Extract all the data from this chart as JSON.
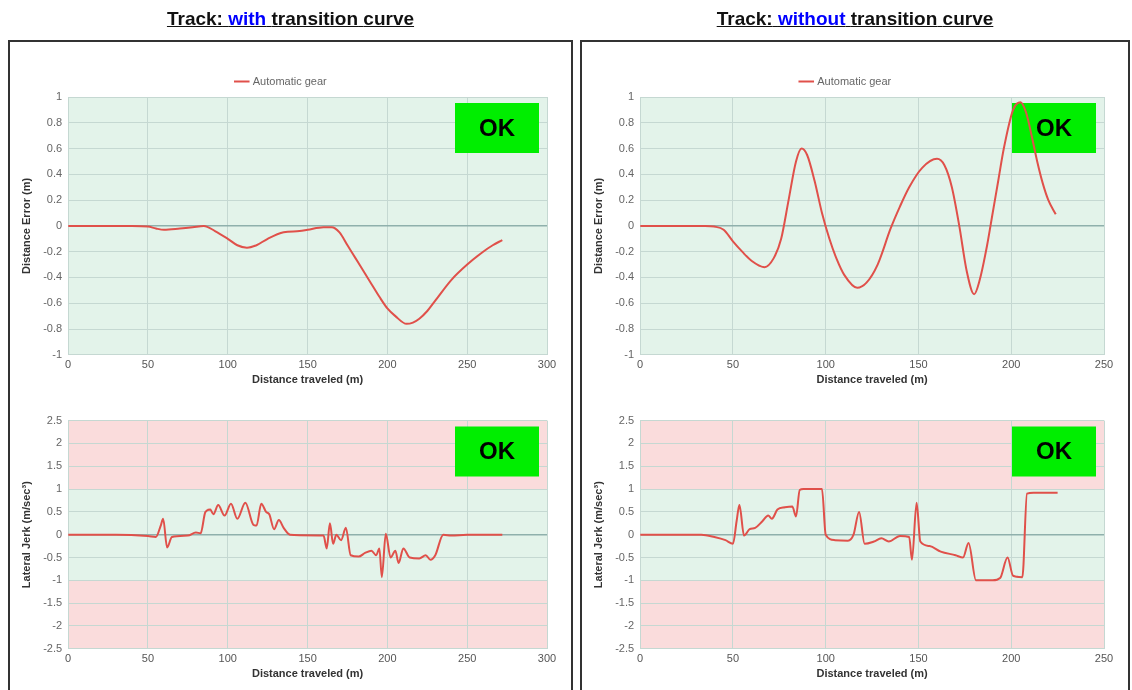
{
  "chart_data": [
    {
      "type": "line",
      "title": "Track: with transition curve",
      "xlabel": "Distance traveled (m)",
      "ylabel": "Distance Error (m)",
      "legend": "top",
      "grid": true,
      "xlim": [
        0,
        300
      ],
      "xticks": [
        0,
        50,
        100,
        150,
        200,
        250,
        300
      ],
      "ylim": [
        -1,
        1
      ],
      "yticks": [
        -1,
        -0.8,
        -0.6,
        -0.4,
        -0.2,
        0,
        0.2,
        0.4,
        0.6,
        0.8,
        1
      ],
      "bands": [
        {
          "axis": "y",
          "from": -1,
          "to": 1,
          "color": "#e3f3ea"
        }
      ],
      "annotations": [
        "OK"
      ],
      "x": [
        0,
        20,
        40,
        50,
        55,
        60,
        70,
        78,
        85,
        92,
        100,
        106,
        112,
        118,
        125,
        135,
        145,
        150,
        160,
        165,
        170,
        175,
        180,
        185,
        190,
        195,
        200,
        205,
        212,
        216,
        220,
        225,
        230,
        240,
        250,
        260,
        266,
        272
      ],
      "series": [
        {
          "name": "Automatic gear",
          "color": "#e0504a",
          "values": [
            0,
            0,
            0,
            -0.005,
            -0.02,
            -0.03,
            -0.02,
            -0.01,
            0,
            -0.04,
            -0.1,
            -0.15,
            -0.17,
            -0.15,
            -0.1,
            -0.05,
            -0.04,
            -0.03,
            -0.01,
            -0.01,
            -0.05,
            -0.15,
            -0.25,
            -0.35,
            -0.45,
            -0.55,
            -0.64,
            -0.7,
            -0.76,
            -0.75,
            -0.72,
            -0.66,
            -0.58,
            -0.42,
            -0.3,
            -0.2,
            -0.15,
            -0.11
          ]
        }
      ]
    },
    {
      "type": "line",
      "title": "Track: without transition curve",
      "xlabel": "Distance traveled (m)",
      "ylabel": "Distance Error (m)",
      "legend": "top",
      "grid": true,
      "xlim": [
        0,
        250
      ],
      "xticks": [
        0,
        50,
        100,
        150,
        200,
        250
      ],
      "ylim": [
        -1,
        1
      ],
      "yticks": [
        -1,
        -0.8,
        -0.6,
        -0.4,
        -0.2,
        0,
        0.2,
        0.4,
        0.6,
        0.8,
        1
      ],
      "bands": [
        {
          "axis": "y",
          "from": -1,
          "to": 1,
          "color": "#e3f3ea"
        }
      ],
      "annotations": [
        "OK"
      ],
      "x": [
        0,
        20,
        35,
        40,
        45,
        50,
        55,
        60,
        67,
        72,
        76,
        80,
        84,
        87,
        90,
        94,
        98,
        102,
        106,
        110,
        117,
        122,
        128,
        135,
        140,
        145,
        152,
        160,
        164,
        168,
        172,
        176,
        180,
        183,
        187,
        190,
        193,
        196,
        201,
        205,
        208,
        211,
        214,
        217,
        220,
        224
      ],
      "series": [
        {
          "name": "Automatic gear",
          "color": "#e0504a",
          "values": [
            0,
            0,
            0,
            -0.005,
            -0.03,
            -0.12,
            -0.2,
            -0.27,
            -0.32,
            -0.25,
            -0.1,
            0.2,
            0.5,
            0.6,
            0.55,
            0.35,
            0.1,
            -0.1,
            -0.26,
            -0.38,
            -0.48,
            -0.44,
            -0.3,
            -0.02,
            0.15,
            0.3,
            0.45,
            0.52,
            0.47,
            0.3,
            0,
            -0.35,
            -0.53,
            -0.42,
            -0.15,
            0.1,
            0.35,
            0.6,
            0.9,
            0.96,
            0.88,
            0.7,
            0.5,
            0.33,
            0.2,
            0.09
          ]
        }
      ]
    },
    {
      "type": "line",
      "xlabel": "Distance traveled (m)",
      "ylabel": "Lateral Jerk (m/sec³)",
      "legend": false,
      "grid": true,
      "xlim": [
        0,
        300
      ],
      "xticks": [
        0,
        50,
        100,
        150,
        200,
        250,
        300
      ],
      "ylim": [
        -2.5,
        2.5
      ],
      "yticks": [
        -2.5,
        -2,
        -1.5,
        -1,
        -0.5,
        0,
        0.5,
        1,
        1.5,
        2,
        2.5
      ],
      "bands": [
        {
          "axis": "y",
          "from": 1,
          "to": 2.5,
          "color": "#fadcdc"
        },
        {
          "axis": "y",
          "from": -1,
          "to": 1,
          "color": "#e3f3ea"
        },
        {
          "axis": "y",
          "from": -2.5,
          "to": -1,
          "color": "#fadcdc"
        }
      ],
      "annotations": [
        "OK"
      ],
      "x": [
        0,
        30,
        50,
        55,
        58,
        59.5,
        62,
        65,
        75,
        80,
        83,
        86,
        89,
        91,
        94,
        98,
        102,
        106,
        111,
        116,
        118,
        121,
        124,
        126,
        129,
        132,
        135,
        139,
        145,
        160,
        162,
        164,
        166,
        168,
        171,
        174,
        177,
        182,
        186,
        190,
        193,
        195,
        196.5,
        199,
        202,
        205,
        207,
        210,
        214,
        220,
        224,
        227,
        230,
        235,
        240,
        250,
        260,
        272
      ],
      "series": [
        {
          "color": "#e0504a",
          "values": [
            0,
            0,
            -0.03,
            -0.05,
            0.2,
            0.35,
            -0.28,
            -0.05,
            -0.02,
            0.05,
            0.03,
            0.5,
            0.55,
            0.45,
            0.65,
            0.42,
            0.68,
            0.35,
            0.7,
            0.22,
            0.2,
            0.68,
            0.5,
            0.45,
            0.12,
            0.32,
            0.15,
            0,
            -0.01,
            -0.02,
            -0.3,
            0.25,
            -0.2,
            0,
            -0.12,
            0.15,
            -0.45,
            -0.48,
            -0.4,
            -0.35,
            -0.45,
            -0.3,
            -0.93,
            0.02,
            -0.5,
            -0.35,
            -0.62,
            -0.3,
            -0.5,
            -0.52,
            -0.45,
            -0.55,
            -0.45,
            0,
            -0.02,
            0,
            0,
            0
          ]
        }
      ]
    },
    {
      "type": "line",
      "xlabel": "Distance traveled (m)",
      "ylabel": "Lateral Jerk (m/sec³)",
      "legend": false,
      "grid": true,
      "xlim": [
        0,
        250
      ],
      "xticks": [
        0,
        50,
        100,
        150,
        200,
        250
      ],
      "ylim": [
        -2.5,
        2.5
      ],
      "yticks": [
        -2.5,
        -2,
        -1.5,
        -1,
        -0.5,
        0,
        0.5,
        1,
        1.5,
        2,
        2.5
      ],
      "bands": [
        {
          "axis": "y",
          "from": 1,
          "to": 2.5,
          "color": "#fadcdc"
        },
        {
          "axis": "y",
          "from": -1,
          "to": 1,
          "color": "#e3f3ea"
        },
        {
          "axis": "y",
          "from": -2.5,
          "to": -1,
          "color": "#fadcdc"
        }
      ],
      "annotations": [
        "OK"
      ],
      "x": [
        0,
        33,
        40,
        46,
        50,
        52,
        53.5,
        56,
        59,
        62,
        66,
        69,
        71,
        74,
        78,
        82,
        84,
        86,
        88,
        98,
        100,
        105,
        112,
        115,
        118,
        121,
        126,
        130,
        134,
        140,
        145,
        146.5,
        149,
        151,
        156,
        162,
        170,
        174,
        177,
        181,
        190,
        194,
        198,
        201,
        206,
        208.5,
        212,
        225
      ],
      "series": [
        {
          "color": "#e0504a",
          "values": [
            0,
            0,
            -0.05,
            -0.12,
            -0.2,
            0.3,
            0.65,
            -0.02,
            0.12,
            0.15,
            0.3,
            0.42,
            0.35,
            0.55,
            0.6,
            0.62,
            0.4,
            0.98,
            1,
            1,
            0,
            -0.12,
            -0.13,
            0,
            0.5,
            -0.2,
            -0.15,
            -0.08,
            -0.15,
            -0.03,
            -0.05,
            -0.55,
            0.7,
            -0.15,
            -0.25,
            -0.37,
            -0.45,
            -0.5,
            -0.18,
            -1,
            -1,
            -0.95,
            -0.5,
            -0.9,
            -0.93,
            0.9,
            0.92,
            0.92
          ]
        }
      ]
    }
  ]
}
